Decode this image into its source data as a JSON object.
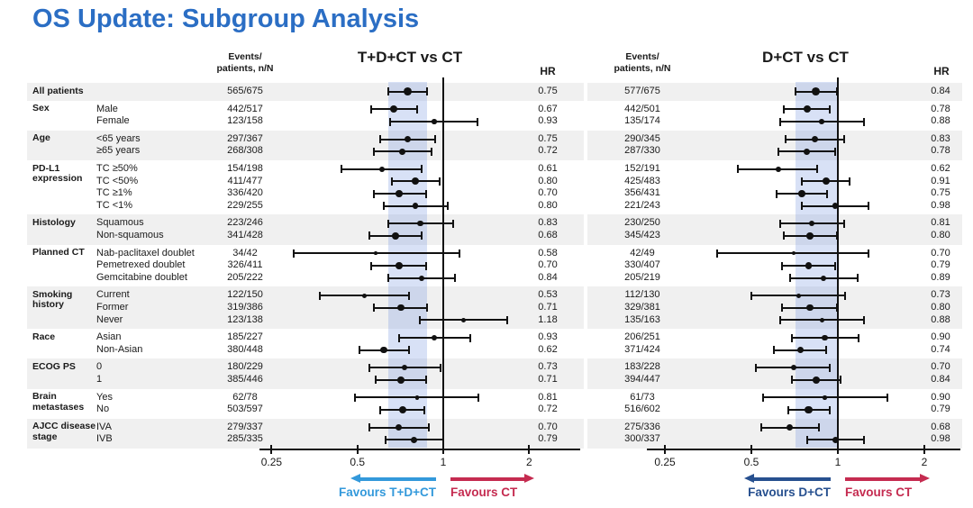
{
  "title": "OS Update: Subgroup Analysis",
  "colors": {
    "title": "#2B6EC4",
    "ink": "#111111",
    "stripe": "#F0F0F0",
    "band": "#7D9BE14D",
    "favours_left": [
      "#3399DB",
      "#27508F"
    ],
    "favours_ct": "#C52B50"
  },
  "chart_data": {
    "type": "forest",
    "x_axis": {
      "scale": "log",
      "ticks": [
        "0.25",
        "0.5",
        "1",
        "2"
      ],
      "tick_values": [
        0.25,
        0.5,
        1,
        2
      ],
      "reference_line": 1
    },
    "panels": [
      {
        "title": "T+D+CT vs CT",
        "events_header": [
          "Events/",
          "patients, n/N"
        ],
        "hr_header": "HR",
        "favours_left": "Favours T+D+CT",
        "favours_right": "Favours CT"
      },
      {
        "title": "D+CT vs CT",
        "events_header": [
          "Events/",
          "patients, n/N"
        ],
        "hr_header": "HR",
        "favours_left": "Favours D+CT",
        "favours_right": "Favours CT"
      }
    ],
    "groups": [
      {
        "label": "All patients",
        "rows": [
          {
            "category": "",
            "p0": {
              "events": "565/675",
              "hr": "0.75",
              "ci": [
                0.64,
                0.88
              ]
            },
            "p1": {
              "events": "577/675",
              "hr": "0.84",
              "ci": [
                0.71,
                0.99
              ]
            }
          }
        ]
      },
      {
        "label": "Sex",
        "rows": [
          {
            "category": "Male",
            "p0": {
              "events": "442/517",
              "hr": "0.67",
              "ci": [
                0.56,
                0.81
              ]
            },
            "p1": {
              "events": "442/501",
              "hr": "0.78",
              "ci": [
                0.65,
                0.94
              ]
            }
          },
          {
            "category": "Female",
            "p0": {
              "events": "123/158",
              "hr": "0.93",
              "ci": [
                0.65,
                1.32
              ]
            },
            "p1": {
              "events": "135/174",
              "hr": "0.88",
              "ci": [
                0.63,
                1.23
              ]
            }
          }
        ]
      },
      {
        "label": "Age",
        "rows": [
          {
            "category": "<65 years",
            "p0": {
              "events": "297/367",
              "hr": "0.75",
              "ci": [
                0.6,
                0.94
              ]
            },
            "p1": {
              "events": "290/345",
              "hr": "0.83",
              "ci": [
                0.66,
                1.05
              ]
            }
          },
          {
            "category": "≥65 years",
            "p0": {
              "events": "268/308",
              "hr": "0.72",
              "ci": [
                0.57,
                0.91
              ]
            },
            "p1": {
              "events": "287/330",
              "hr": "0.78",
              "ci": [
                0.62,
                0.98
              ]
            }
          }
        ]
      },
      {
        "label": "PD-L1 expression",
        "rows": [
          {
            "category": "TC ≥50%",
            "p0": {
              "events": "154/198",
              "hr": "0.61",
              "ci": [
                0.44,
                0.84
              ]
            },
            "p1": {
              "events": "152/191",
              "hr": "0.62",
              "ci": [
                0.45,
                0.85
              ]
            }
          },
          {
            "category": "TC <50%",
            "p0": {
              "events": "411/477",
              "hr": "0.80",
              "ci": [
                0.66,
                0.97
              ]
            },
            "p1": {
              "events": "425/483",
              "hr": "0.91",
              "ci": [
                0.75,
                1.1
              ]
            }
          },
          {
            "category": "TC ≥1%",
            "p0": {
              "events": "336/420",
              "hr": "0.70",
              "ci": [
                0.57,
                0.87
              ]
            },
            "p1": {
              "events": "356/431",
              "hr": "0.75",
              "ci": [
                0.61,
                0.92
              ]
            }
          },
          {
            "category": "TC <1%",
            "p0": {
              "events": "229/255",
              "hr": "0.80",
              "ci": [
                0.62,
                1.04
              ]
            },
            "p1": {
              "events": "221/243",
              "hr": "0.98",
              "ci": [
                0.75,
                1.28
              ]
            }
          }
        ]
      },
      {
        "label": "Histology",
        "rows": [
          {
            "category": "Squamous",
            "p0": {
              "events": "223/246",
              "hr": "0.83",
              "ci": [
                0.64,
                1.08
              ]
            },
            "p1": {
              "events": "230/250",
              "hr": "0.81",
              "ci": [
                0.63,
                1.05
              ]
            }
          },
          {
            "category": "Non-squamous",
            "p0": {
              "events": "341/428",
              "hr": "0.68",
              "ci": [
                0.55,
                0.84
              ]
            },
            "p1": {
              "events": "345/423",
              "hr": "0.80",
              "ci": [
                0.65,
                0.99
              ]
            }
          }
        ]
      },
      {
        "label": "Planned CT",
        "rows": [
          {
            "category": "Nab-paclitaxel doublet",
            "p0": {
              "events": "34/42",
              "hr": "0.58",
              "ci": [
                0.3,
                1.14
              ]
            },
            "p1": {
              "events": "42/49",
              "hr": "0.70",
              "ci": [
                0.38,
                1.28
              ]
            }
          },
          {
            "category": "Pemetrexed doublet",
            "p0": {
              "events": "326/411",
              "hr": "0.70",
              "ci": [
                0.56,
                0.87
              ]
            },
            "p1": {
              "events": "330/407",
              "hr": "0.79",
              "ci": [
                0.64,
                0.98
              ]
            }
          },
          {
            "category": "Gemcitabine doublet",
            "p0": {
              "events": "205/222",
              "hr": "0.84",
              "ci": [
                0.64,
                1.1
              ]
            },
            "p1": {
              "events": "205/219",
              "hr": "0.89",
              "ci": [
                0.68,
                1.17
              ]
            }
          }
        ]
      },
      {
        "label": "Smoking history",
        "rows": [
          {
            "category": "Current",
            "p0": {
              "events": "122/150",
              "hr": "0.53",
              "ci": [
                0.37,
                0.76
              ]
            },
            "p1": {
              "events": "112/130",
              "hr": "0.73",
              "ci": [
                0.5,
                1.06
              ]
            }
          },
          {
            "category": "Former",
            "p0": {
              "events": "319/386",
              "hr": "0.71",
              "ci": [
                0.57,
                0.88
              ]
            },
            "p1": {
              "events": "329/381",
              "hr": "0.80",
              "ci": [
                0.64,
                0.99
              ]
            }
          },
          {
            "category": "Never",
            "p0": {
              "events": "123/138",
              "hr": "1.18",
              "ci": [
                0.83,
                1.68
              ]
            },
            "p1": {
              "events": "135/163",
              "hr": "0.88",
              "ci": [
                0.63,
                1.23
              ]
            }
          }
        ]
      },
      {
        "label": "Race",
        "rows": [
          {
            "category": "Asian",
            "p0": {
              "events": "185/227",
              "hr": "0.93",
              "ci": [
                0.7,
                1.24
              ]
            },
            "p1": {
              "events": "206/251",
              "hr": "0.90",
              "ci": [
                0.69,
                1.18
              ]
            }
          },
          {
            "category": "Non-Asian",
            "p0": {
              "events": "380/448",
              "hr": "0.62",
              "ci": [
                0.51,
                0.76
              ]
            },
            "p1": {
              "events": "371/424",
              "hr": "0.74",
              "ci": [
                0.6,
                0.91
              ]
            }
          }
        ]
      },
      {
        "label": "ECOG PS",
        "rows": [
          {
            "category": "0",
            "p0": {
              "events": "180/229",
              "hr": "0.73",
              "ci": [
                0.55,
                0.98
              ]
            },
            "p1": {
              "events": "183/228",
              "hr": "0.70",
              "ci": [
                0.52,
                0.94
              ]
            }
          },
          {
            "category": "1",
            "p0": {
              "events": "385/446",
              "hr": "0.71",
              "ci": [
                0.58,
                0.87
              ]
            },
            "p1": {
              "events": "394/447",
              "hr": "0.84",
              "ci": [
                0.69,
                1.02
              ]
            }
          }
        ]
      },
      {
        "label": "Brain metastases",
        "rows": [
          {
            "category": "Yes",
            "p0": {
              "events": "62/78",
              "hr": "0.81",
              "ci": [
                0.49,
                1.33
              ]
            },
            "p1": {
              "events": "61/73",
              "hr": "0.90",
              "ci": [
                0.55,
                1.49
              ]
            }
          },
          {
            "category": "No",
            "p0": {
              "events": "503/597",
              "hr": "0.72",
              "ci": [
                0.6,
                0.86
              ]
            },
            "p1": {
              "events": "516/602",
              "hr": "0.79",
              "ci": [
                0.67,
                0.94
              ]
            }
          }
        ]
      },
      {
        "label": "AJCC disease stage",
        "rows": [
          {
            "category": "IVA",
            "p0": {
              "events": "279/337",
              "hr": "0.70",
              "ci": [
                0.55,
                0.89
              ]
            },
            "p1": {
              "events": "275/336",
              "hr": "0.68",
              "ci": [
                0.54,
                0.86
              ]
            }
          },
          {
            "category": "IVB",
            "p0": {
              "events": "285/335",
              "hr": "0.79",
              "ci": [
                0.63,
                1.0
              ]
            },
            "p1": {
              "events": "300/337",
              "hr": "0.98",
              "ci": [
                0.78,
                1.23
              ]
            }
          }
        ]
      }
    ]
  }
}
